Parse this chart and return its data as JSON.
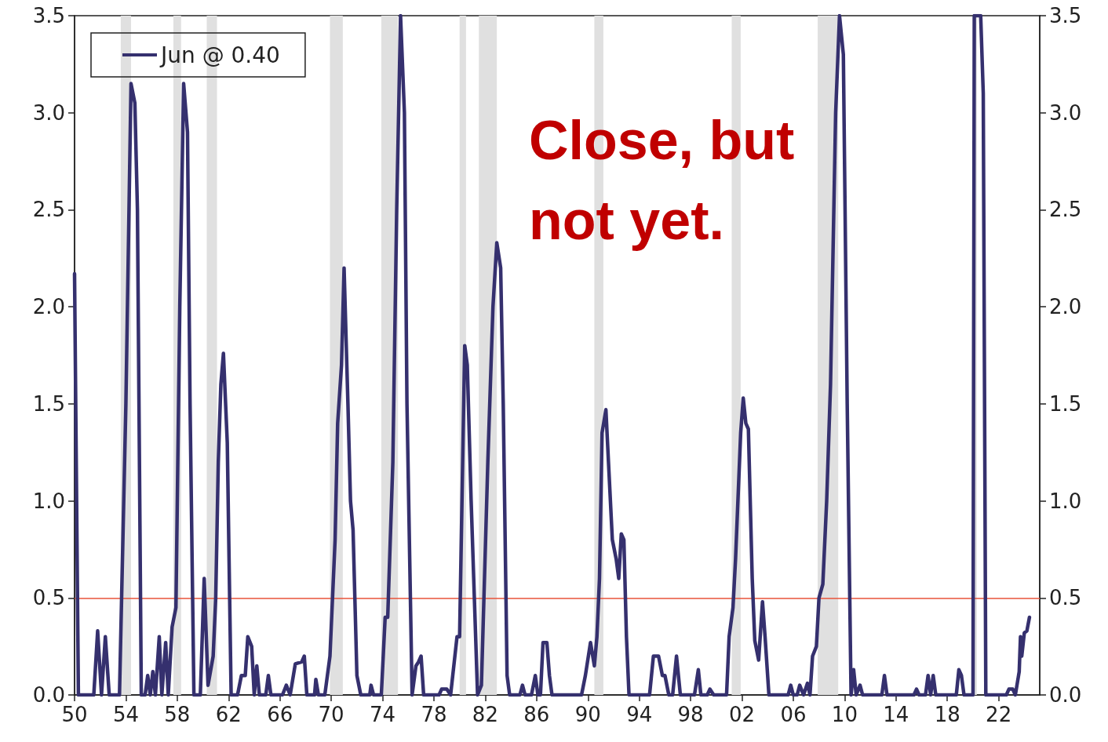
{
  "chart_data": {
    "type": "line",
    "legend": "top left",
    "line_style": "solid",
    "marker": "none",
    "xlim": [
      1950,
      2025.2
    ],
    "xticks": [
      {
        "value": 1950,
        "label": "50"
      },
      {
        "value": 1954,
        "label": "54"
      },
      {
        "value": 1958,
        "label": "58"
      },
      {
        "value": 1962,
        "label": "62"
      },
      {
        "value": 1966,
        "label": "66"
      },
      {
        "value": 1970,
        "label": "70"
      },
      {
        "value": 1974,
        "label": "74"
      },
      {
        "value": 1978,
        "label": "78"
      },
      {
        "value": 1982,
        "label": "82"
      },
      {
        "value": 1986,
        "label": "86"
      },
      {
        "value": 1990,
        "label": "90"
      },
      {
        "value": 1994,
        "label": "94"
      },
      {
        "value": 1998,
        "label": "98"
      },
      {
        "value": 2002,
        "label": "02"
      },
      {
        "value": 2006,
        "label": "06"
      },
      {
        "value": 2010,
        "label": "10"
      },
      {
        "value": 2014,
        "label": "14"
      },
      {
        "value": 2018,
        "label": "18"
      },
      {
        "value": 2022,
        "label": "22"
      }
    ],
    "ylim": [
      0,
      3.5
    ],
    "yticks": [
      {
        "value": 0,
        "label": "0.0"
      },
      {
        "value": 0.5,
        "label": "0.5"
      },
      {
        "value": 1,
        "label": "1.0"
      },
      {
        "value": 1.5,
        "label": "1.5"
      },
      {
        "value": 2,
        "label": "2.0"
      },
      {
        "value": 2.5,
        "label": "2.5"
      },
      {
        "value": 3,
        "label": "3.0"
      },
      {
        "value": 3.5,
        "label": "3.5"
      }
    ],
    "y2lim": [
      0,
      3.5
    ],
    "y2ticks": [
      {
        "value": 0,
        "label": "0.0"
      },
      {
        "value": 0.5,
        "label": "0.5"
      },
      {
        "value": 1,
        "label": "1.0"
      },
      {
        "value": 1.5,
        "label": "1.5"
      },
      {
        "value": 2,
        "label": "2.0"
      },
      {
        "value": 2.5,
        "label": "2.5"
      },
      {
        "value": 3,
        "label": "3.0"
      },
      {
        "value": 3.5,
        "label": "3.5"
      }
    ],
    "annotations": [
      "Close, but\nnot yet."
    ],
    "ref_lines": [
      {
        "axis": "y",
        "value": 0.5,
        "color": "#e8533a"
      }
    ],
    "bands": [
      {
        "axis": "x",
        "from": 1953.6,
        "to": 1954.4,
        "color": "#e0e0e0"
      },
      {
        "axis": "x",
        "from": 1957.7,
        "to": 1958.3,
        "color": "#e0e0e0"
      },
      {
        "axis": "x",
        "from": 1960.3,
        "to": 1961.1,
        "color": "#e0e0e0"
      },
      {
        "axis": "x",
        "from": 1969.9,
        "to": 1970.9,
        "color": "#e0e0e0"
      },
      {
        "axis": "x",
        "from": 1973.9,
        "to": 1975.2,
        "color": "#e0e0e0"
      },
      {
        "axis": "x",
        "from": 1980.0,
        "to": 1980.5,
        "color": "#e0e0e0"
      },
      {
        "axis": "x",
        "from": 1981.5,
        "to": 1982.9,
        "color": "#e0e0e0"
      },
      {
        "axis": "x",
        "from": 1990.5,
        "to": 1991.2,
        "color": "#e0e0e0"
      },
      {
        "axis": "x",
        "from": 2001.2,
        "to": 2001.9,
        "color": "#e0e0e0"
      },
      {
        "axis": "x",
        "from": 2007.9,
        "to": 2009.5,
        "color": "#e0e0e0"
      },
      {
        "axis": "x",
        "from": 2020.1,
        "to": 2020.3,
        "color": "#e0e0e0"
      }
    ],
    "series": [
      {
        "name": "Jun @ 0.40",
        "color": "#35306e",
        "x": [
          1950.0,
          1950.3,
          1951.5,
          1951.8,
          1952.1,
          1952.4,
          1952.7,
          1953.5,
          1954.0,
          1954.4,
          1954.7,
          1954.9,
          1955.2,
          1955.5,
          1955.7,
          1955.9,
          1956.1,
          1956.3,
          1956.6,
          1956.8,
          1957.1,
          1957.3,
          1957.6,
          1957.9,
          1958.2,
          1958.5,
          1958.8,
          1959.0,
          1959.3,
          1959.8,
          1960.1,
          1960.4,
          1960.8,
          1961.0,
          1961.2,
          1961.4,
          1961.6,
          1961.9,
          1962.2,
          1962.7,
          1963.0,
          1963.3,
          1963.5,
          1963.8,
          1964.0,
          1964.2,
          1964.4,
          1964.9,
          1965.1,
          1965.3,
          1966.2,
          1966.5,
          1966.8,
          1967.2,
          1967.7,
          1967.9,
          1968.1,
          1968.7,
          1968.8,
          1969.0,
          1969.5,
          1969.9,
          1970.3,
          1970.5,
          1970.8,
          1971.0,
          1971.3,
          1971.5,
          1971.7,
          1972.0,
          1972.3,
          1973.0,
          1973.1,
          1973.3,
          1973.9,
          1974.2,
          1974.4,
          1974.8,
          1975.1,
          1975.4,
          1975.7,
          1975.9,
          1976.3,
          1976.6,
          1976.8,
          1977.0,
          1977.2,
          1978.4,
          1978.6,
          1979.0,
          1979.3,
          1979.8,
          1980.0,
          1980.4,
          1980.6,
          1980.9,
          1981.1,
          1981.4,
          1981.7,
          1982.2,
          1982.6,
          1982.9,
          1983.2,
          1983.4,
          1983.7,
          1983.9,
          1984.7,
          1984.9,
          1985.1,
          1985.6,
          1985.9,
          1986.1,
          1986.3,
          1986.5,
          1986.8,
          1987.0,
          1987.2,
          1989.5,
          1989.8,
          1990.2,
          1990.5,
          1990.7,
          1990.9,
          1991.1,
          1991.4,
          1991.6,
          1991.9,
          1992.2,
          1992.4,
          1992.6,
          1992.8,
          1993.0,
          1993.2,
          1994.8,
          1995.1,
          1995.5,
          1995.8,
          1996.0,
          1996.3,
          1996.6,
          1996.9,
          1997.2,
          1998.3,
          1998.6,
          1998.8,
          1999.3,
          1999.5,
          1999.8,
          2000.8,
          2001.0,
          2001.3,
          2001.5,
          2001.9,
          2002.1,
          2002.3,
          2002.5,
          2002.8,
          2003.0,
          2003.3,
          2003.6,
          2003.8,
          2004.1,
          2005.6,
          2005.8,
          2006.0,
          2006.3,
          2006.5,
          2006.8,
          2007.1,
          2007.3,
          2007.5,
          2007.8,
          2008.0,
          2008.3,
          2008.6,
          2008.9,
          2009.3,
          2009.6,
          2009.9,
          2010.2,
          2010.5,
          2010.7,
          2010.9,
          2011.2,
          2011.4,
          2012.9,
          2013.1,
          2013.3,
          2015.4,
          2015.6,
          2015.8,
          2016.3,
          2016.5,
          2016.7,
          2016.9,
          2017.1,
          2018.7,
          2018.9,
          2019.1,
          2019.3,
          2020.0,
          2020.1,
          2020.6,
          2020.8,
          2021.0,
          2022.6,
          2022.8,
          2023.1,
          2023.3,
          2023.6,
          2023.7,
          2023.8,
          2024.0,
          2024.2,
          2024.4
        ],
        "values": [
          2.17,
          0,
          0,
          0.33,
          0,
          0.3,
          0,
          0,
          1.5,
          3.15,
          3.05,
          2.5,
          0,
          0,
          0.1,
          0,
          0.12,
          0,
          0.3,
          0,
          0.27,
          0,
          0.35,
          0.45,
          2.0,
          3.15,
          2.9,
          1.5,
          0,
          0,
          0.6,
          0.05,
          0.2,
          0.5,
          1.2,
          1.6,
          1.76,
          1.3,
          0,
          0,
          0.1,
          0.1,
          0.3,
          0.25,
          0,
          0.15,
          0,
          0,
          0.1,
          0,
          0,
          0.05,
          0,
          0.16,
          0.17,
          0.2,
          0,
          0,
          0.08,
          0,
          0,
          0.2,
          0.8,
          1.4,
          1.7,
          2.2,
          1.5,
          1.0,
          0.85,
          0.1,
          0,
          0,
          0.05,
          0,
          0,
          0.4,
          0.4,
          1.2,
          2.5,
          3.5,
          3.0,
          1.5,
          0,
          0.15,
          0.17,
          0.2,
          0,
          0,
          0.03,
          0.03,
          0,
          0.3,
          0.3,
          1.8,
          1.7,
          1.0,
          0.6,
          0,
          0.05,
          1.2,
          2.0,
          2.33,
          2.2,
          1.5,
          0.1,
          0,
          0,
          0.05,
          0,
          0,
          0.1,
          0,
          0,
          0.27,
          0.27,
          0.1,
          0,
          0,
          0.1,
          0.27,
          0.15,
          0.3,
          0.6,
          1.35,
          1.47,
          1.2,
          0.8,
          0.7,
          0.6,
          0.83,
          0.8,
          0.3,
          0,
          0,
          0.2,
          0.2,
          0.1,
          0.1,
          0,
          0,
          0.2,
          0,
          0,
          0.13,
          0,
          0,
          0.03,
          0,
          0,
          0.3,
          0.45,
          0.7,
          1.35,
          1.53,
          1.4,
          1.37,
          0.6,
          0.28,
          0.18,
          0.48,
          0.3,
          0,
          0,
          0.05,
          0,
          0,
          0.05,
          0,
          0.06,
          0,
          0.2,
          0.25,
          0.5,
          0.57,
          1.0,
          1.6,
          3.0,
          3.5,
          3.3,
          1.5,
          0,
          0.13,
          0,
          0.05,
          0,
          0,
          0.1,
          0,
          0,
          0.03,
          0,
          0,
          0.1,
          0,
          0.1,
          0,
          0,
          0.13,
          0.1,
          0,
          0,
          3.5,
          3.5,
          3.1,
          0,
          0,
          0.03,
          0.03,
          0,
          0.12,
          0.3,
          0.2,
          0.32,
          0.33,
          0.4
        ]
      }
    ]
  }
}
